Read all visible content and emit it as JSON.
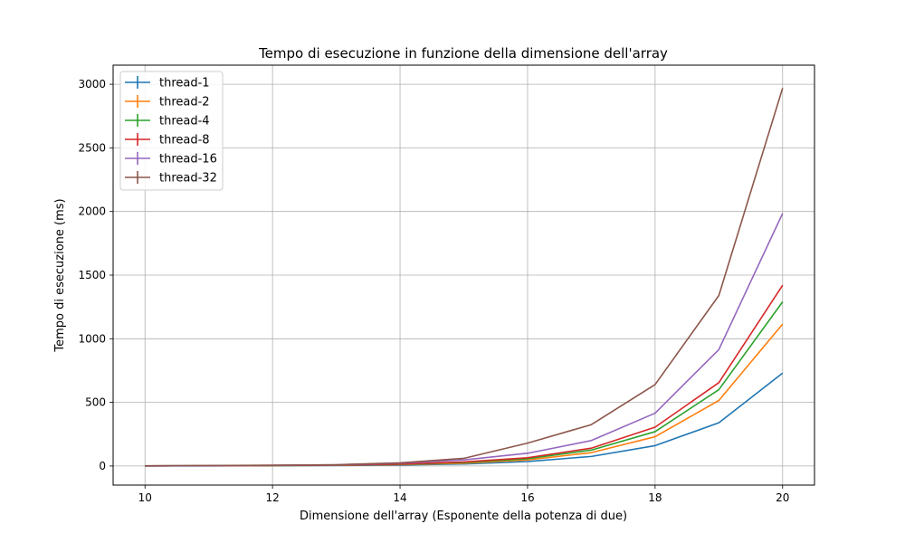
{
  "chart_data": {
    "type": "line",
    "title": "Tempo di esecuzione in funzione della dimensione dell'array",
    "xlabel": "Dimensione dell'array (Esponente della potenza di due)",
    "ylabel": "Tempo di esecuzione (ms)",
    "xlim": [
      9.5,
      20.5
    ],
    "ylim": [
      -150,
      3150
    ],
    "xticks": [
      10,
      12,
      14,
      16,
      18,
      20
    ],
    "yticks": [
      0,
      500,
      1000,
      1500,
      2000,
      2500,
      3000
    ],
    "grid": true,
    "legend_position": "top-left",
    "x": [
      10,
      11,
      12,
      13,
      14,
      15,
      16,
      17,
      18,
      19,
      20
    ],
    "series": [
      {
        "name": "thread-1",
        "color": "#1f77b4",
        "values": [
          0.5,
          1,
          2,
          4,
          8,
          16,
          35,
          75,
          160,
          340,
          730
        ]
      },
      {
        "name": "thread-2",
        "color": "#ff7f0e",
        "values": [
          1,
          2,
          3,
          5,
          11,
          22,
          48,
          105,
          230,
          515,
          1115
        ]
      },
      {
        "name": "thread-4",
        "color": "#2ca02c",
        "values": [
          1,
          2,
          3,
          6,
          13,
          27,
          57,
          125,
          270,
          600,
          1290
        ]
      },
      {
        "name": "thread-8",
        "color": "#d62728",
        "values": [
          1,
          2,
          4,
          7,
          15,
          32,
          65,
          140,
          305,
          655,
          1420
        ]
      },
      {
        "name": "thread-16",
        "color": "#9467bd",
        "values": [
          1,
          2,
          5,
          9,
          22,
          48,
          100,
          200,
          415,
          915,
          1985
        ]
      },
      {
        "name": "thread-32",
        "color": "#8c564b",
        "values": [
          2,
          3,
          6,
          10,
          25,
          60,
          180,
          325,
          640,
          1340,
          2970
        ]
      }
    ]
  }
}
